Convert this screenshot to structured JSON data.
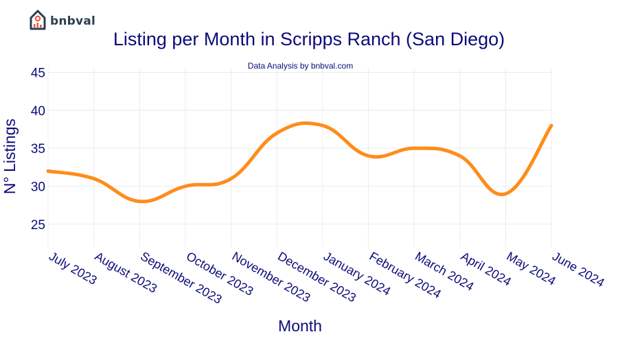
{
  "brand": {
    "name": "bnbval",
    "logo_icon": "house-chart-icon",
    "accent": "#e8573f",
    "dark": "#2c3e50"
  },
  "chart_data": {
    "type": "line",
    "title": "Listing per Month in Scripps Ranch (San Diego)",
    "subtitle": "Data Analysis by bnbval.com",
    "xlabel": "Month",
    "ylabel": "N° Listings",
    "categories": [
      "July 2023",
      "August 2023",
      "September 2023",
      "October 2023",
      "November 2023",
      "December 2023",
      "January 2024",
      "February 2024",
      "March 2024",
      "April 2024",
      "May 2024",
      "June 2024"
    ],
    "series": [
      {
        "values": [
          32,
          31,
          28,
          30,
          31,
          37,
          38,
          34,
          35,
          34,
          29,
          38
        ],
        "color": "#ff8c1a"
      }
    ],
    "yticks": [
      25,
      30,
      35,
      40,
      45
    ],
    "ylim": [
      22,
      45.5
    ],
    "grid": true,
    "smoothing": "spline",
    "text_color": "#0b0b7a"
  }
}
